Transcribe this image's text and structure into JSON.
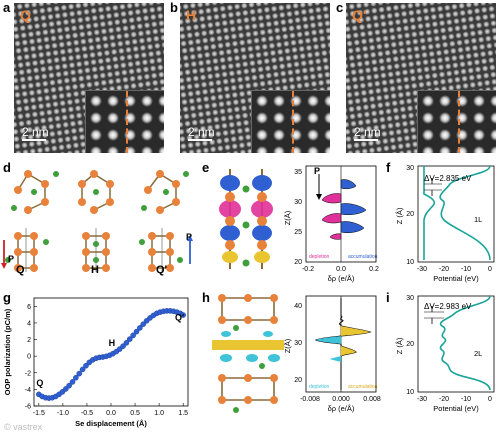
{
  "stem_panels": [
    {
      "letter": "a",
      "phase": "Q",
      "scale": "2 nm"
    },
    {
      "letter": "b",
      "phase": "H",
      "scale": "2 nm"
    },
    {
      "letter": "c",
      "phase": "Q'",
      "scale": "2 nm"
    }
  ],
  "panel_d": {
    "letter": "d",
    "phases": [
      "Q",
      "H",
      "Q'"
    ],
    "arrow_label_left": "P",
    "arrow_label_right": "P"
  },
  "panel_e": {
    "letter": "e",
    "y_label": "Z(Å)",
    "x_label": "δρ (e/Å)",
    "y_ticks": [
      "20",
      "25",
      "30",
      "35"
    ],
    "x_ticks": [
      "-0.2",
      "0.0",
      "0.2"
    ],
    "arrow_label": "P",
    "legend_left": "depletion",
    "legend_right": "accumulation"
  },
  "panel_f": {
    "letter": "f",
    "y_label": "Z (Å)",
    "x_label": "Potential (eV)",
    "y_ticks": [
      "10",
      "20",
      "30"
    ],
    "x_ticks": [
      "-30",
      "-20",
      "-10",
      "0"
    ],
    "delta_v": "ΔV=2.835 eV",
    "layer": "1L"
  },
  "panel_g": {
    "letter": "g",
    "y_label": "OOP polarization (pC/m)",
    "x_label": "Se displacement (Å)",
    "y_ticks": [
      "-6",
      "-4",
      "-2",
      "0",
      "2",
      "4",
      "6"
    ],
    "x_ticks": [
      "-1.5",
      "-1.0",
      "-0.5",
      "0.0",
      "0.5",
      "1.0",
      "1.5"
    ],
    "point_labels": {
      "Q": "Q",
      "H": "H",
      "Q_prime": "Q'"
    }
  },
  "panel_h": {
    "letter": "h",
    "y_label": "Z(Å)",
    "x_label": "δρ (e/Å)",
    "y_ticks": [
      "20",
      "30",
      "40"
    ],
    "x_ticks": [
      "-0.008",
      "0.000",
      "0.008"
    ],
    "legend_left": "depletion",
    "legend_right": "accumulation"
  },
  "panel_i": {
    "letter": "i",
    "y_label": "Z (Å)",
    "x_label": "Potential (eV)",
    "y_ticks": [
      "10",
      "20",
      "30"
    ],
    "x_ticks": [
      "-30",
      "-20",
      "-10",
      "0"
    ],
    "delta_v": "ΔV=2.983 eV",
    "layer": "2L"
  },
  "watermark": "© vastrex",
  "colors": {
    "orange": "#e8823a",
    "teal": "#1aa59a",
    "blue": "#2f5fd0",
    "pink": "#e0309a",
    "cyan": "#3fc3d8",
    "yellow": "#e8c531",
    "se_green": "#3f9f3a"
  },
  "chart_data": {
    "type": "scatter",
    "title": "",
    "xlabel": "Se displacement (Å)",
    "ylabel": "OOP polarization (pC/m)",
    "xlim": [
      -1.6,
      1.6
    ],
    "ylim": [
      -6,
      7
    ],
    "series": [
      {
        "x": [
          -1.5,
          -1.43,
          -1.36,
          -1.29,
          -1.22,
          -1.15,
          -1.08,
          -1.01,
          -0.94,
          -0.87,
          -0.8,
          -0.73,
          -0.66,
          -0.59,
          -0.52,
          -0.45,
          -0.38,
          -0.31,
          -0.24,
          -0.17,
          -0.1,
          -0.03,
          0.04,
          0.11,
          0.18,
          0.25,
          0.32,
          0.39,
          0.46,
          0.53,
          0.6,
          0.67,
          0.74,
          0.81,
          0.88,
          0.95,
          1.02,
          1.09,
          1.16,
          1.23,
          1.3,
          1.37,
          1.44,
          1.5
        ],
        "y": [
          -4.6,
          -4.85,
          -5.0,
          -5.05,
          -5.0,
          -4.85,
          -4.6,
          -4.3,
          -3.95,
          -3.55,
          -3.1,
          -2.6,
          -2.1,
          -1.6,
          -1.15,
          -0.75,
          -0.45,
          -0.25,
          -0.15,
          -0.1,
          -0.02,
          0.1,
          0.3,
          0.55,
          0.85,
          1.2,
          1.6,
          2.05,
          2.5,
          2.95,
          3.4,
          3.85,
          4.25,
          4.6,
          4.9,
          5.15,
          5.3,
          5.4,
          5.45,
          5.45,
          5.4,
          5.3,
          5.15,
          4.95
        ]
      }
    ]
  }
}
